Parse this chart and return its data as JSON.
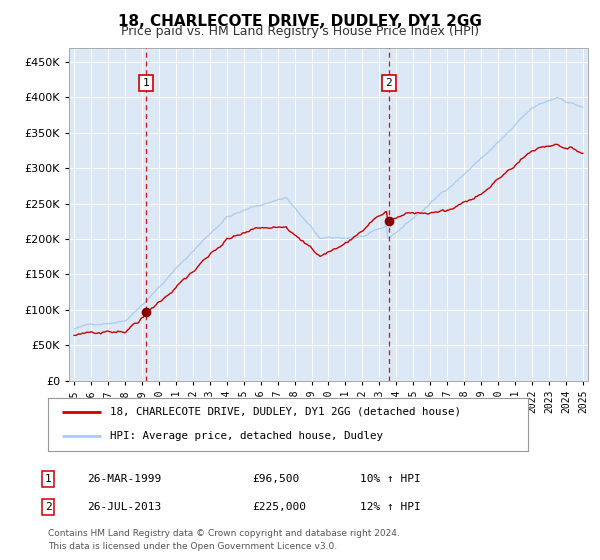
{
  "title": "18, CHARLECOTE DRIVE, DUDLEY, DY1 2GG",
  "subtitle": "Price paid vs. HM Land Registry's House Price Index (HPI)",
  "legend_line1": "18, CHARLECOTE DRIVE, DUDLEY, DY1 2GG (detached house)",
  "legend_line2": "HPI: Average price, detached house, Dudley",
  "footer": "Contains HM Land Registry data © Crown copyright and database right 2024.\nThis data is licensed under the Open Government Licence v3.0.",
  "annotation1_label": "1",
  "annotation1_date": "26-MAR-1999",
  "annotation1_price": "£96,500",
  "annotation1_hpi": "10% ↑ HPI",
  "annotation2_label": "2",
  "annotation2_date": "26-JUL-2013",
  "annotation2_price": "£225,000",
  "annotation2_hpi": "12% ↑ HPI",
  "x_start_year": 1995,
  "x_end_year": 2025,
  "ylim": [
    0,
    470000
  ],
  "yticks": [
    0,
    50000,
    100000,
    150000,
    200000,
    250000,
    300000,
    350000,
    400000,
    450000
  ],
  "plot_bg": "#dce8f5",
  "fig_bg": "#ffffff",
  "red_line_color": "#cc0000",
  "blue_line_color": "#aaccee",
  "sale1_year": 1999.23,
  "sale1_value": 96500,
  "sale2_year": 2013.56,
  "sale2_value": 225000,
  "vline_color": "#cc0000",
  "marker_color": "#880000",
  "grid_color": "#ffffff",
  "spine_color": "#aaaaaa",
  "title_fontsize": 11,
  "subtitle_fontsize": 9,
  "ytick_fontsize": 8,
  "xtick_fontsize": 7
}
